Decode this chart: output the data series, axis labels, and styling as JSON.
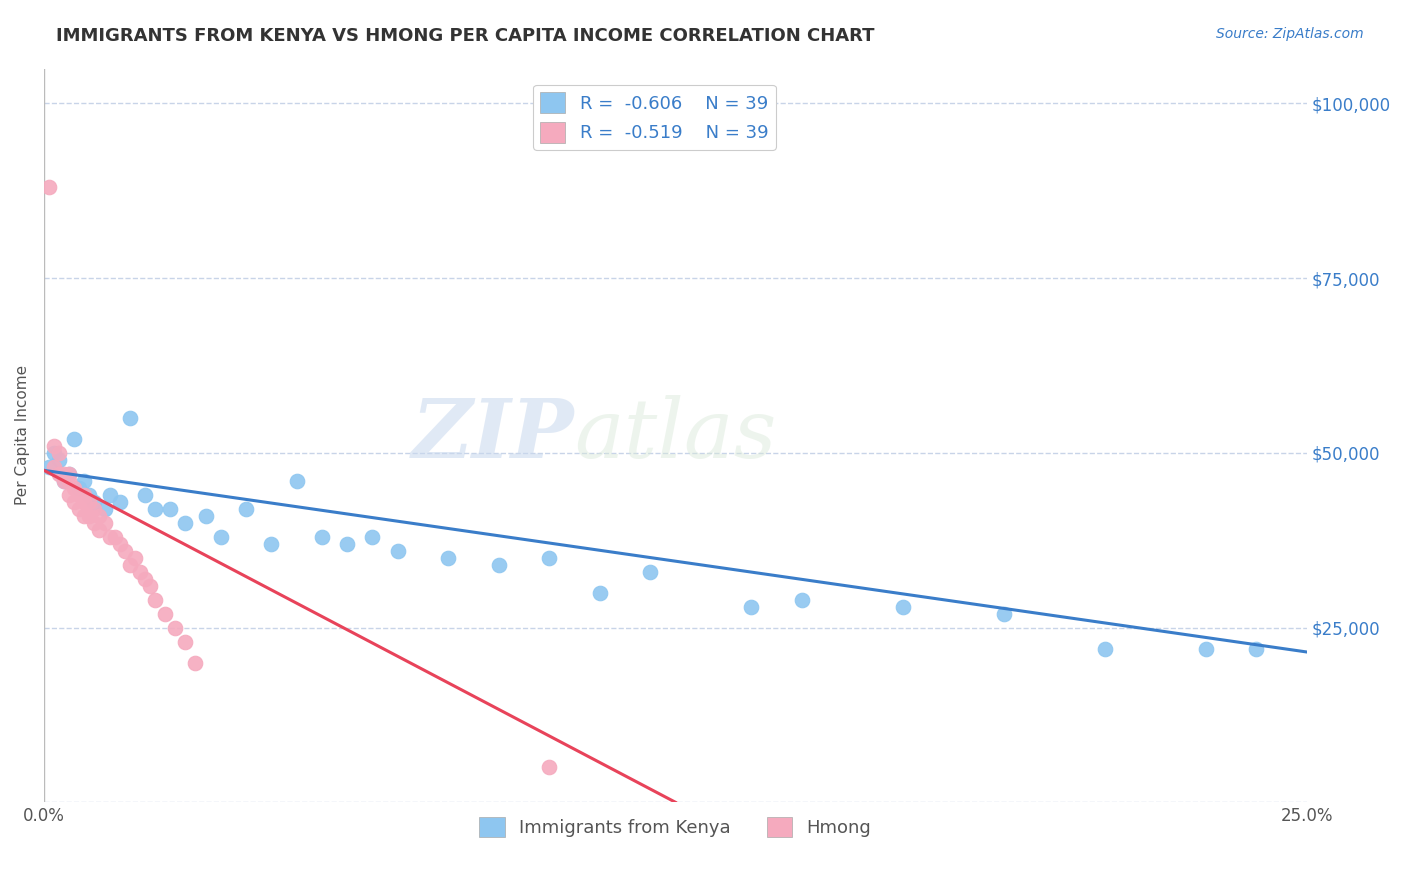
{
  "title": "IMMIGRANTS FROM KENYA VS HMONG PER CAPITA INCOME CORRELATION CHART",
  "source_text": "Source: ZipAtlas.com",
  "ylabel": "Per Capita Income",
  "x_min": 0.0,
  "x_max": 0.25,
  "y_min": 0,
  "y_max": 105000,
  "x_ticks": [
    0.0,
    0.05,
    0.1,
    0.15,
    0.2,
    0.25
  ],
  "x_tick_labels": [
    "0.0%",
    "",
    "",
    "",
    "",
    "25.0%"
  ],
  "y_right_ticks": [
    0,
    25000,
    50000,
    75000,
    100000
  ],
  "y_right_labels": [
    "",
    "$25,000",
    "$50,000",
    "$75,000",
    "$100,000"
  ],
  "kenya_color": "#8ec6f0",
  "hmong_color": "#f5aabe",
  "kenya_line_color": "#3a7dc9",
  "hmong_line_color": "#e8435a",
  "kenya_R": -0.606,
  "kenya_N": 39,
  "hmong_R": -0.519,
  "hmong_N": 39,
  "background_color": "#ffffff",
  "grid_color": "#c8d4e8",
  "watermark_zip": "ZIP",
  "watermark_atlas": "atlas",
  "kenya_x": [
    0.001,
    0.002,
    0.003,
    0.004,
    0.005,
    0.006,
    0.007,
    0.008,
    0.009,
    0.01,
    0.012,
    0.013,
    0.015,
    0.017,
    0.02,
    0.022,
    0.025,
    0.028,
    0.032,
    0.035,
    0.04,
    0.045,
    0.05,
    0.055,
    0.06,
    0.065,
    0.07,
    0.08,
    0.09,
    0.1,
    0.11,
    0.12,
    0.14,
    0.15,
    0.17,
    0.19,
    0.21,
    0.23,
    0.24
  ],
  "kenya_y": [
    48000,
    50000,
    49000,
    46000,
    47000,
    52000,
    45000,
    46000,
    44000,
    43000,
    42000,
    44000,
    43000,
    55000,
    44000,
    42000,
    42000,
    40000,
    41000,
    38000,
    42000,
    37000,
    46000,
    38000,
    37000,
    38000,
    36000,
    35000,
    34000,
    35000,
    30000,
    33000,
    28000,
    29000,
    28000,
    27000,
    22000,
    22000,
    22000
  ],
  "hmong_x": [
    0.001,
    0.002,
    0.002,
    0.003,
    0.003,
    0.004,
    0.004,
    0.005,
    0.005,
    0.005,
    0.006,
    0.006,
    0.007,
    0.007,
    0.008,
    0.008,
    0.008,
    0.009,
    0.009,
    0.01,
    0.01,
    0.011,
    0.011,
    0.012,
    0.013,
    0.014,
    0.015,
    0.016,
    0.017,
    0.018,
    0.019,
    0.02,
    0.021,
    0.022,
    0.024,
    0.026,
    0.028,
    0.03,
    0.1
  ],
  "hmong_y": [
    88000,
    48000,
    51000,
    47000,
    50000,
    46000,
    47000,
    46000,
    44000,
    47000,
    45000,
    43000,
    44000,
    42000,
    44000,
    43000,
    41000,
    43000,
    41000,
    42000,
    40000,
    41000,
    39000,
    40000,
    38000,
    38000,
    37000,
    36000,
    34000,
    35000,
    33000,
    32000,
    31000,
    29000,
    27000,
    25000,
    23000,
    20000,
    5000
  ],
  "kenya_trend_x0": 0.0,
  "kenya_trend_y0": 47500,
  "kenya_trend_x1": 0.25,
  "kenya_trend_y1": 21500,
  "hmong_trend_x0": 0.0,
  "hmong_trend_y0": 47500,
  "hmong_trend_x1": 0.125,
  "hmong_trend_y1": 0
}
